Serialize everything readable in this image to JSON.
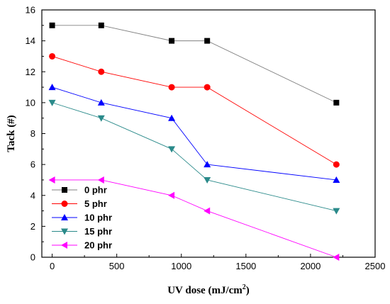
{
  "chart_data": {
    "type": "line",
    "xlabel": "UV dose (mJ/cm",
    "xlabel_sup": "2",
    "xlabel_end": ")",
    "ylabel": "Tack (#)",
    "xlim": [
      -80,
      2500
    ],
    "ylim": [
      0,
      16
    ],
    "xticks": [
      0,
      500,
      1000,
      1500,
      2000,
      2500
    ],
    "yticks": [
      0,
      2,
      4,
      6,
      8,
      10,
      12,
      14,
      16
    ],
    "legend_position": "bottom-left",
    "x": [
      0,
      380,
      925,
      1200,
      2200
    ],
    "series": [
      {
        "name": "0 phr",
        "values": [
          15,
          15,
          14,
          14,
          10
        ],
        "color": "#000000",
        "line_color": "#808080",
        "marker": "square"
      },
      {
        "name": "5 phr",
        "values": [
          13,
          12,
          11,
          11,
          6
        ],
        "color": "#ff0000",
        "line_color": "#ff0000",
        "marker": "circle"
      },
      {
        "name": "10 phr",
        "values": [
          11,
          10,
          9,
          6,
          5
        ],
        "color": "#0000ff",
        "line_color": "#0000ff",
        "marker": "triangle-up"
      },
      {
        "name": "15 phr",
        "values": [
          10,
          9,
          7,
          5,
          3
        ],
        "color": "#2a8a8a",
        "line_color": "#2a8a8a",
        "marker": "triangle-down"
      },
      {
        "name": "20 phr",
        "values": [
          5,
          5,
          4,
          3,
          0
        ],
        "color": "#ff00ff",
        "line_color": "#ff00ff",
        "marker": "triangle-left"
      }
    ]
  }
}
